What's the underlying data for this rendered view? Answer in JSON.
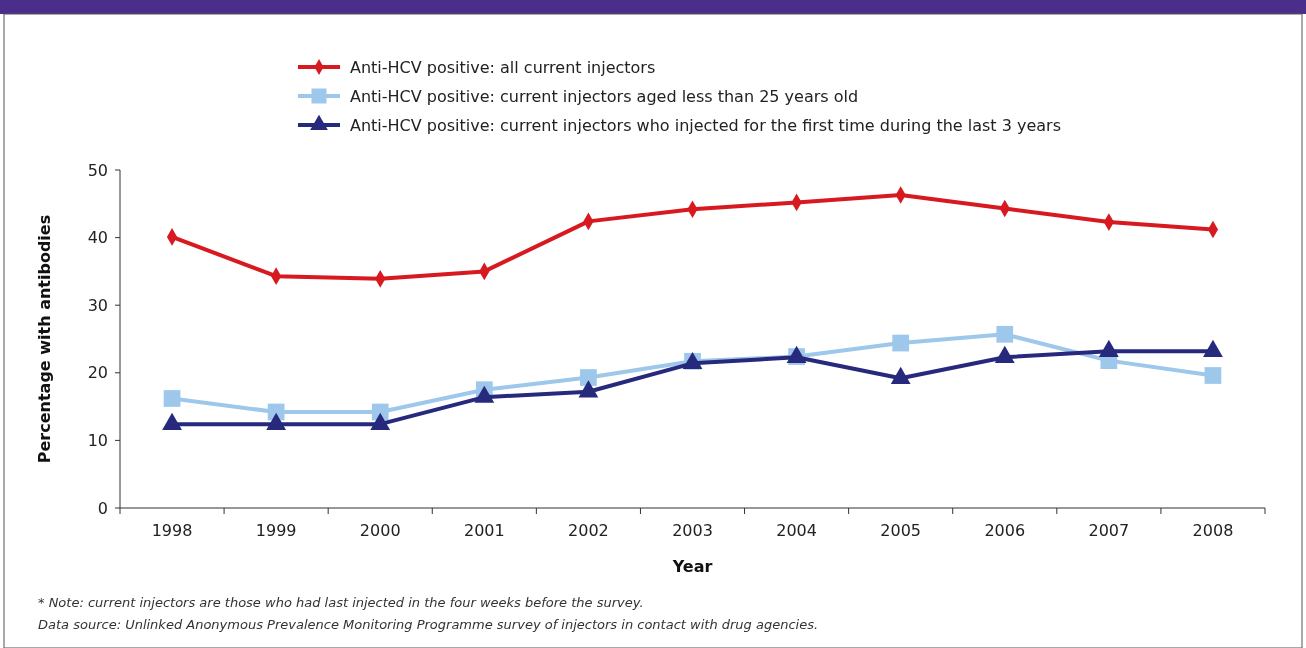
{
  "chart_data": {
    "type": "line",
    "xlabel": "Year",
    "ylabel": "Percentage with antibodies",
    "categories": [
      "1998",
      "1999",
      "2000",
      "2001",
      "2002",
      "2003",
      "2004",
      "2005",
      "2006",
      "2007",
      "2008"
    ],
    "series": [
      {
        "name": "Anti-HCV positive: all current injectors",
        "color": "#d71920",
        "marker": "diamond",
        "values": [
          40.1,
          34.3,
          33.9,
          35.0,
          42.4,
          44.2,
          45.2,
          46.3,
          44.3,
          42.3,
          41.2
        ]
      },
      {
        "name": "Anti-HCV positive: current injectors aged less than 25 years old",
        "color": "#9dc8eb",
        "marker": "square",
        "values": [
          16.2,
          14.2,
          14.2,
          17.5,
          19.3,
          21.7,
          22.4,
          24.4,
          25.7,
          21.8,
          19.6
        ]
      },
      {
        "name": "Anti-HCV positive: current injectors who injected for the first time during the last 3 years",
        "color": "#27297d",
        "marker": "triangle",
        "values": [
          12.4,
          12.4,
          12.4,
          16.4,
          17.2,
          21.4,
          22.3,
          19.2,
          22.3,
          23.2,
          23.2
        ]
      }
    ],
    "ylim": [
      0,
      50
    ],
    "yticks": [
      0,
      10,
      20,
      30,
      40,
      50
    ],
    "grid": false,
    "legend": "top",
    "annotations": [
      "* Note: current injectors are those who had last injected in the four weeks before the survey.",
      "Data source: Unlinked Anonymous Prevalence Monitoring Programme survey of injectors in contact with drug agencies."
    ]
  }
}
